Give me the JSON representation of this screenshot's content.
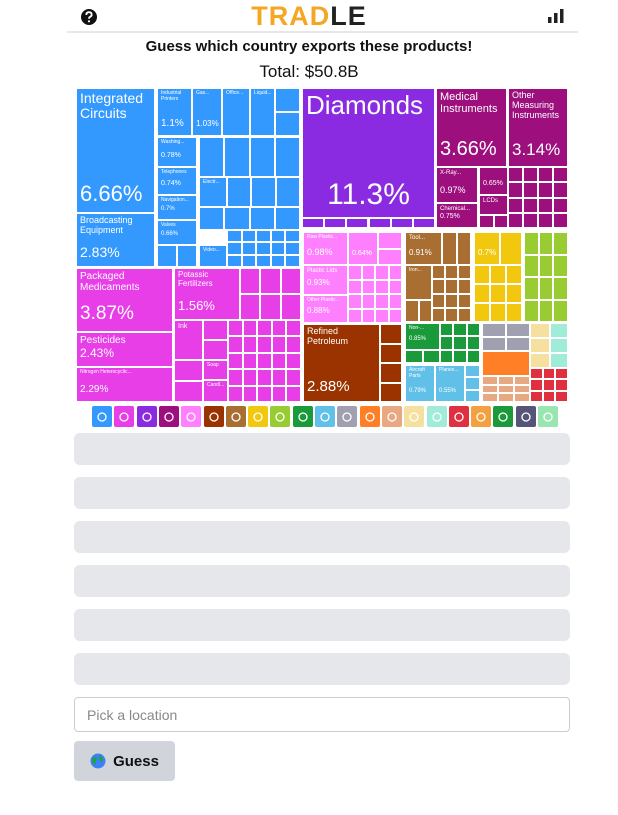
{
  "header": {
    "logo_primary": "TRAD",
    "logo_secondary": "LE"
  },
  "prompt": "Guess which country exports these products!",
  "total": "Total: $50.8B",
  "treemap": {
    "tiles": [
      {
        "label": "Integrated Circuits",
        "share": "6.66%"
      },
      {
        "label": "Broadcasting Equipment",
        "share": "2.83%"
      },
      {
        "label": "Industrial Printers",
        "share": "1.1%"
      },
      {
        "label": "Gas...",
        "share": "1.03%"
      },
      {
        "label": "Office..."
      },
      {
        "label": "Liquid..."
      },
      {
        "label": "Washing...",
        "share": "0.78%"
      },
      {
        "label": "Telephones",
        "share": "0.74%"
      },
      {
        "label": "Navigation...",
        "share": "0.7%"
      },
      {
        "label": "Valves",
        "share": "0.66%"
      },
      {
        "label": "Electr..."
      },
      {
        "label": "Video..."
      },
      {
        "label": "Diamonds",
        "share": "11.3%"
      },
      {
        "label": "Medical Instruments",
        "share": "3.66%"
      },
      {
        "label": "Other Measuring Instruments",
        "share": "3.14%"
      },
      {
        "label": "X-Ray...",
        "share": "0.97%"
      },
      {
        "share": "0.65%"
      },
      {
        "label": "LCDs"
      },
      {
        "label": "Chemical...",
        "share": "0.75%"
      },
      {
        "label": "Packaged Medicaments",
        "share": "3.87%"
      },
      {
        "label": "Pesticides",
        "share": "2.43%"
      },
      {
        "label": "Nitrogen Heterocyclic...",
        "share": "2.29%"
      },
      {
        "label": "Potassic Fertilizers",
        "share": "1.56%"
      },
      {
        "label": "Ink"
      },
      {
        "label": "Soap"
      },
      {
        "label": "Candl..."
      },
      {
        "label": "Raw Plastic...",
        "share": "0.98%"
      },
      {
        "share": "0.64%"
      },
      {
        "label": "Plastic Lids",
        "share": "0.93%"
      },
      {
        "label": "Other Plastic...",
        "share": "0.88%"
      },
      {
        "label": "Refined Petroleum",
        "share": "2.88%"
      },
      {
        "label": "Tool...",
        "share": "0.91%"
      },
      {
        "label": "Iron..."
      },
      {
        "share": "0.7%"
      },
      {
        "label": "Non-...",
        "share": "0.85%"
      },
      {
        "label": "Aircraft Parts",
        "share": "0.79%"
      },
      {
        "label": "Planes...",
        "share": "0.55%"
      }
    ]
  },
  "input": {
    "placeholder": "Pick a location"
  },
  "button": {
    "label": "Guess"
  }
}
